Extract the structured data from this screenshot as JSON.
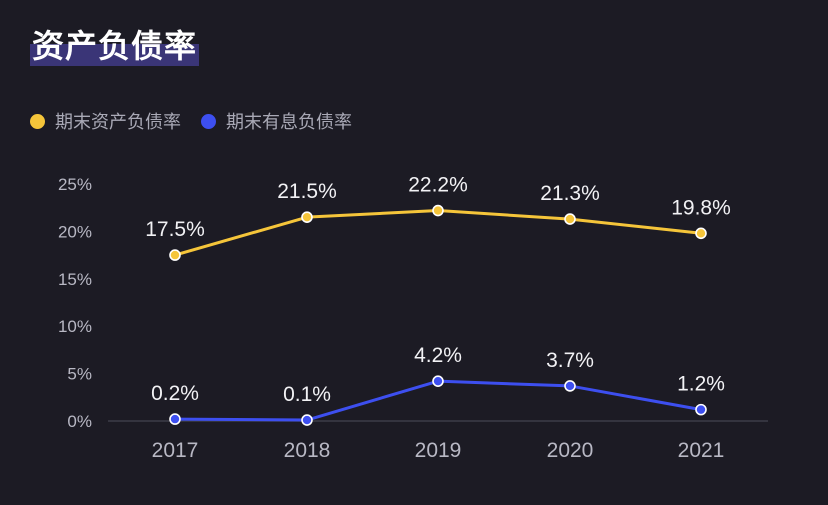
{
  "title": "资产负债率",
  "colors": {
    "background": "#1c1b24",
    "series1": "#f5c53a",
    "series2": "#3d4ff0",
    "axis": "#3c3c48",
    "tick_text": "#b8b8c4",
    "label_text": "#f2f2f5"
  },
  "chart_data": {
    "type": "line",
    "title": "资产负债率",
    "categories": [
      "2017",
      "2018",
      "2019",
      "2020",
      "2021"
    ],
    "y_ticks": [
      "0%",
      "5%",
      "10%",
      "15%",
      "20%",
      "25%"
    ],
    "ylim": [
      0,
      25
    ],
    "grid": false,
    "legend_position": "top-left",
    "series": [
      {
        "name": "期末资产负债率",
        "values": [
          17.5,
          21.5,
          22.2,
          21.3,
          19.8
        ],
        "labels": [
          "17.5%",
          "21.5%",
          "22.2%",
          "21.3%",
          "19.8%"
        ],
        "color": "#f5c53a"
      },
      {
        "name": "期末有息负债率",
        "values": [
          0.2,
          0.1,
          4.2,
          3.7,
          1.2
        ],
        "labels": [
          "0.2%",
          "0.1%",
          "4.2%",
          "3.7%",
          "1.2%"
        ],
        "color": "#3d4ff0"
      }
    ]
  }
}
